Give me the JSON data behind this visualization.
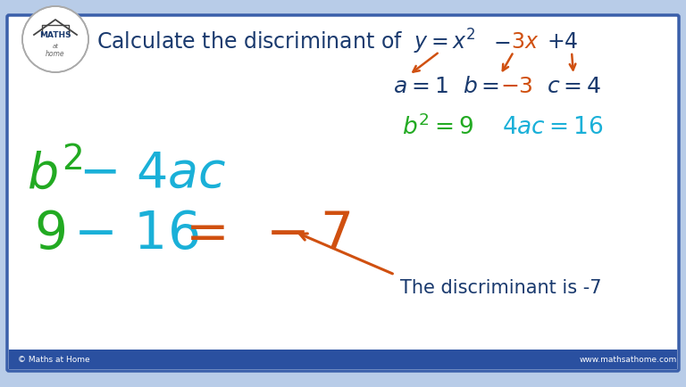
{
  "bg_color": "#ffffff",
  "border_color": "#3a5faa",
  "outer_bg": "#b8cce8",
  "dark_blue": "#1a3a6e",
  "green": "#22aa22",
  "cyan": "#1ab0d8",
  "orange": "#d05010",
  "footer_bg": "#2a50a0",
  "footer_left": "© Maths at Home",
  "footer_right": "www.mathsathome.com"
}
